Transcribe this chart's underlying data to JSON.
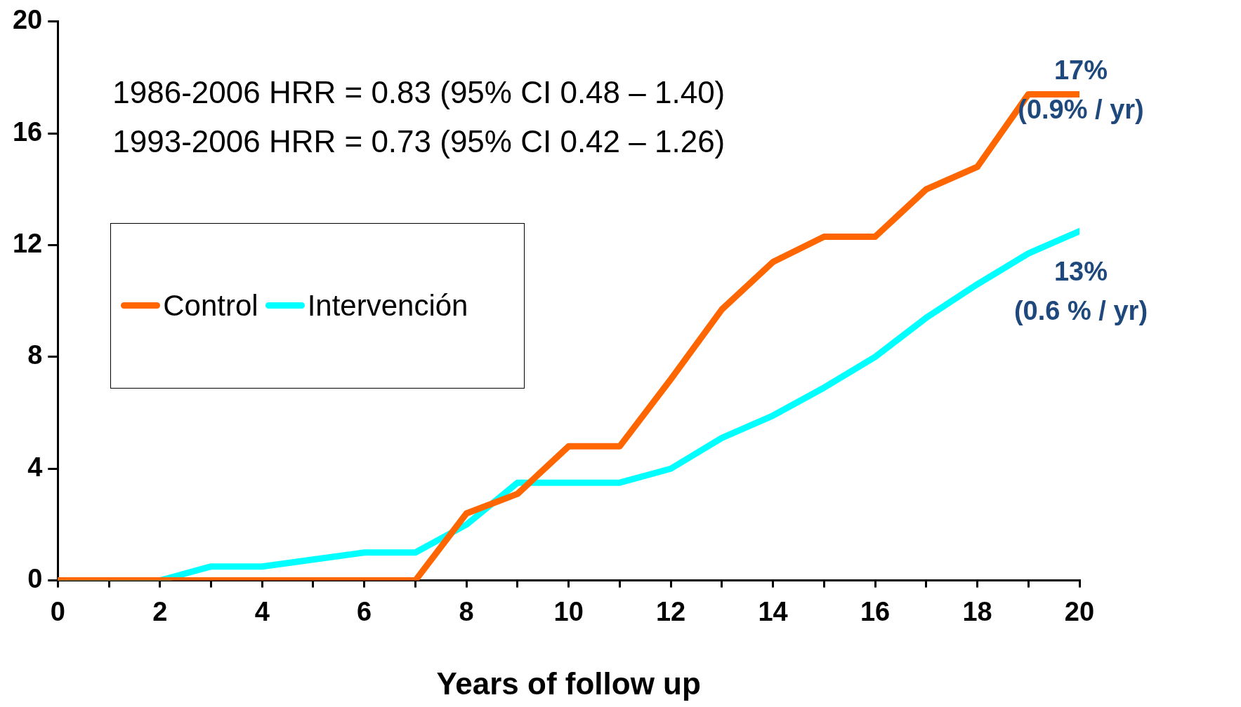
{
  "chart_data": {
    "type": "line",
    "xlabel": "Years of follow up",
    "x": [
      0,
      1,
      2,
      3,
      4,
      5,
      6,
      7,
      8,
      9,
      10,
      11,
      12,
      13,
      14,
      15,
      16,
      17,
      18,
      19,
      20
    ],
    "series": [
      {
        "name": "Control",
        "color": "#ff6600",
        "values": [
          0,
          0,
          0,
          0,
          0,
          0,
          0,
          0,
          2.4,
          3.1,
          4.8,
          4.8,
          7.2,
          9.7,
          11.4,
          12.3,
          12.3,
          14.0,
          14.8,
          17.4,
          17.4
        ]
      },
      {
        "name": "Intervención",
        "color": "#00ffff",
        "values": [
          0,
          0,
          0,
          0.5,
          0.5,
          0.75,
          1.0,
          1.0,
          2.0,
          3.5,
          3.5,
          3.5,
          4.0,
          5.1,
          5.9,
          6.9,
          8.0,
          9.4,
          10.6,
          11.7,
          12.5
        ]
      }
    ],
    "xlim": [
      0,
      20
    ],
    "xticks": [
      0,
      {
        "value": 1,
        "label": null
      },
      2,
      {
        "value": 3,
        "label": null
      },
      4,
      {
        "value": 5,
        "label": null
      },
      6,
      {
        "value": 7,
        "label": null
      },
      8,
      {
        "value": 9,
        "label": null
      },
      10,
      {
        "value": 11,
        "label": null
      },
      12,
      {
        "value": 13,
        "label": null
      },
      14,
      {
        "value": 15,
        "label": null
      },
      16,
      {
        "value": 17,
        "label": null
      },
      18,
      {
        "value": 19,
        "label": null
      },
      20
    ],
    "ylim": [
      0,
      20
    ],
    "yticks": [
      0,
      4,
      8,
      12,
      16,
      20
    ],
    "grid": false,
    "legend": "left",
    "marker": "none",
    "line_style": "solid",
    "annotations": [
      "1986-2006 HRR = 0.83 (95% CI 0.48 – 1.40)",
      "1993-2006 HRR = 0.73 (95% CI 0.42 – 1.26)",
      "17%",
      "(0.9% / yr)",
      "13%",
      "(0.6 % / yr)"
    ]
  }
}
